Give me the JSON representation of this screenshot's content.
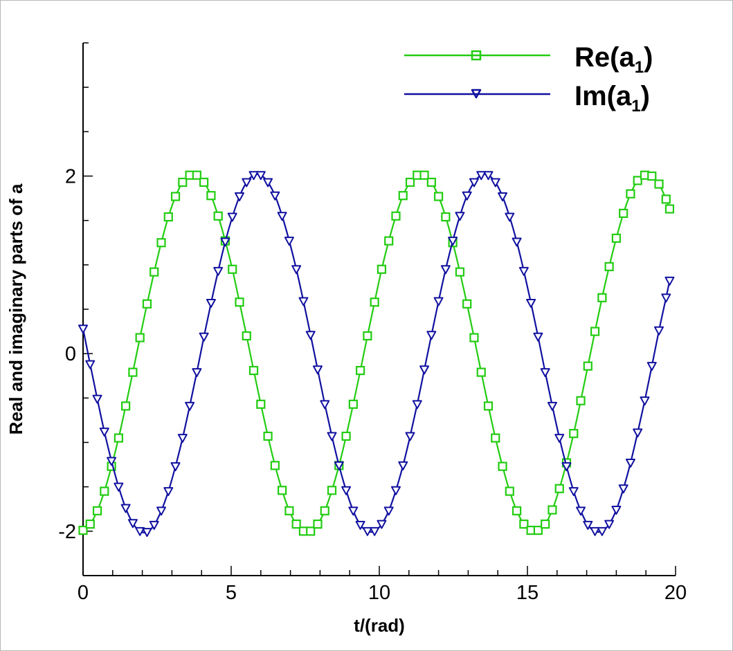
{
  "chart_data": {
    "type": "line",
    "title": "",
    "xlabel": "t/(rad)",
    "ylabel": "Real and imaginary parts of a",
    "xlim": [
      0,
      20
    ],
    "ylim": [
      -2.5,
      3.5
    ],
    "x_ticks": [
      "0",
      "5",
      "10",
      "15",
      "20"
    ],
    "y_ticks": [
      "-2",
      "0",
      "2"
    ],
    "grid": false,
    "legend_placement": "top-right",
    "series": [
      {
        "name": "Re(a",
        "subscript": "1",
        "name_suffix": ")",
        "color": "#22cc11",
        "marker": "square",
        "x": [
          0.0,
          0.24,
          0.48,
          0.72,
          0.96,
          1.2,
          1.44,
          1.68,
          1.92,
          2.16,
          2.4,
          2.64,
          2.88,
          3.12,
          3.36,
          3.6,
          3.84,
          4.08,
          4.32,
          4.56,
          4.8,
          5.04,
          5.28,
          5.52,
          5.76,
          6.0,
          6.24,
          6.48,
          6.72,
          6.96,
          7.2,
          7.44,
          7.68,
          7.92,
          8.16,
          8.4,
          8.64,
          8.88,
          9.12,
          9.36,
          9.6,
          9.84,
          10.08,
          10.32,
          10.56,
          10.8,
          11.04,
          11.28,
          11.52,
          11.76,
          12.0,
          12.24,
          12.48,
          12.72,
          12.96,
          13.2,
          13.44,
          13.68,
          13.92,
          14.16,
          14.4,
          14.64,
          14.88,
          15.12,
          15.36,
          15.6,
          15.84,
          16.08,
          16.32,
          16.56,
          16.8,
          17.04,
          17.28,
          17.52,
          17.76,
          18.0,
          18.24,
          18.48,
          18.72,
          18.96,
          19.2,
          19.44,
          19.68,
          19.8
        ],
        "y": [
          -1.99,
          -1.92,
          -1.77,
          -1.55,
          -1.27,
          -0.95,
          -0.59,
          -0.21,
          0.18,
          0.56,
          0.92,
          1.25,
          1.54,
          1.77,
          1.93,
          2.01,
          2.01,
          1.93,
          1.78,
          1.55,
          1.27,
          0.95,
          0.58,
          0.2,
          -0.19,
          -0.57,
          -0.93,
          -1.26,
          -1.54,
          -1.77,
          -1.92,
          -2.0,
          -2.0,
          -1.92,
          -1.77,
          -1.54,
          -1.26,
          -0.93,
          -0.57,
          -0.19,
          0.2,
          0.58,
          0.95,
          1.27,
          1.55,
          1.78,
          1.93,
          2.01,
          2.01,
          1.93,
          1.77,
          1.54,
          1.25,
          0.92,
          0.56,
          0.18,
          -0.21,
          -0.59,
          -0.95,
          -1.27,
          -1.55,
          -1.77,
          -1.92,
          -1.99,
          -1.99,
          -1.92,
          -1.76,
          -1.52,
          -1.23,
          -0.9,
          -0.53,
          -0.14,
          0.25,
          0.63,
          0.98,
          1.3,
          1.58,
          1.8,
          1.95,
          2.01,
          2.0,
          1.91,
          1.74,
          1.63
        ]
      },
      {
        "name": "Im(a",
        "subscript": "1",
        "name_suffix": ")",
        "color": "#1010a0",
        "marker": "triangle-down",
        "x": [
          0.0,
          0.24,
          0.48,
          0.72,
          0.96,
          1.2,
          1.44,
          1.68,
          1.92,
          2.16,
          2.4,
          2.64,
          2.88,
          3.12,
          3.36,
          3.6,
          3.84,
          4.08,
          4.32,
          4.56,
          4.8,
          5.04,
          5.28,
          5.52,
          5.76,
          6.0,
          6.24,
          6.48,
          6.72,
          6.96,
          7.2,
          7.44,
          7.68,
          7.92,
          8.16,
          8.4,
          8.64,
          8.88,
          9.12,
          9.36,
          9.6,
          9.84,
          10.08,
          10.32,
          10.56,
          10.8,
          11.04,
          11.28,
          11.52,
          11.76,
          12.0,
          12.24,
          12.48,
          12.72,
          12.96,
          13.2,
          13.44,
          13.68,
          13.92,
          14.16,
          14.4,
          14.64,
          14.88,
          15.12,
          15.36,
          15.6,
          15.84,
          16.08,
          16.32,
          16.56,
          16.8,
          17.04,
          17.28,
          17.52,
          17.76,
          18.0,
          18.24,
          18.48,
          18.72,
          18.96,
          19.2,
          19.44,
          19.68,
          19.8
        ],
        "y": [
          0.28,
          -0.12,
          -0.51,
          -0.88,
          -1.21,
          -1.5,
          -1.74,
          -1.91,
          -2.0,
          -2.01,
          -1.93,
          -1.77,
          -1.55,
          -1.27,
          -0.95,
          -0.59,
          -0.21,
          0.19,
          0.57,
          0.93,
          1.26,
          1.54,
          1.77,
          1.93,
          2.01,
          2.01,
          1.93,
          1.78,
          1.55,
          1.27,
          0.95,
          0.59,
          0.21,
          -0.18,
          -0.57,
          -0.93,
          -1.26,
          -1.54,
          -1.77,
          -1.93,
          -2.0,
          -2.0,
          -1.92,
          -1.77,
          -1.54,
          -1.26,
          -0.93,
          -0.57,
          -0.18,
          0.21,
          0.59,
          0.95,
          1.27,
          1.55,
          1.78,
          1.93,
          2.01,
          2.01,
          1.93,
          1.77,
          1.54,
          1.26,
          0.93,
          0.57,
          0.19,
          -0.21,
          -0.59,
          -0.95,
          -1.27,
          -1.55,
          -1.77,
          -1.93,
          -2.0,
          -2.0,
          -1.92,
          -1.76,
          -1.52,
          -1.23,
          -0.89,
          -0.53,
          -0.14,
          0.26,
          0.63,
          0.82
        ]
      }
    ]
  }
}
